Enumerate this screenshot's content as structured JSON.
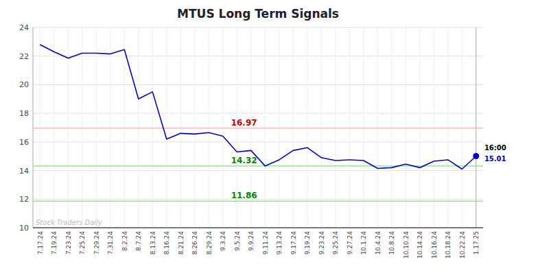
{
  "chart_data": {
    "type": "line",
    "title": "MTUS Long Term Signals",
    "categories": [
      "7.17.24",
      "7.19.24",
      "7.23.24",
      "7.25.24",
      "7.29.24",
      "7.31.24",
      "8.2.24",
      "8.7.24",
      "8.13.24",
      "8.16.24",
      "8.21.24",
      "8.26.24",
      "8.29.24",
      "9.3.24",
      "9.5.24",
      "9.9.24",
      "9.11.24",
      "9.13.24",
      "9.17.24",
      "9.19.24",
      "9.23.24",
      "9.25.24",
      "9.27.24",
      "10.1.24",
      "10.4.24",
      "10.8.24",
      "10.10.24",
      "10.14.24",
      "10.16.24",
      "10.18.24",
      "10.22.24",
      "1.17.25"
    ],
    "values": [
      22.8,
      22.3,
      21.85,
      22.2,
      22.2,
      22.15,
      22.45,
      19.0,
      19.5,
      16.2,
      16.6,
      16.55,
      16.65,
      16.4,
      15.3,
      15.4,
      14.32,
      14.75,
      15.4,
      15.6,
      14.9,
      14.7,
      14.75,
      14.7,
      14.15,
      14.2,
      14.45,
      14.2,
      14.65,
      14.75,
      14.1,
      15.01
    ],
    "color": "#0000cc",
    "reference_lines": [
      {
        "value": 16.97,
        "label": "16.97",
        "color": "#ffbbbb",
        "label_color": "#cc0000"
      },
      {
        "value": 14.32,
        "label": "14.32",
        "color": "#88ee88",
        "label_color": "#008800"
      },
      {
        "value": 11.86,
        "label": "11.86",
        "color": "#88ee88",
        "label_color": "#008800"
      }
    ],
    "annotations": [
      {
        "text": "16:00",
        "color": "#000000"
      },
      {
        "text": "15.01",
        "color": "#0000cc"
      },
      {
        "text": "Stock Traders Daily",
        "color": "#bbbbbb"
      }
    ],
    "ylim": [
      10,
      24
    ],
    "yticks": [
      10,
      12,
      14,
      16,
      18,
      20,
      22,
      24
    ],
    "grid": true
  }
}
